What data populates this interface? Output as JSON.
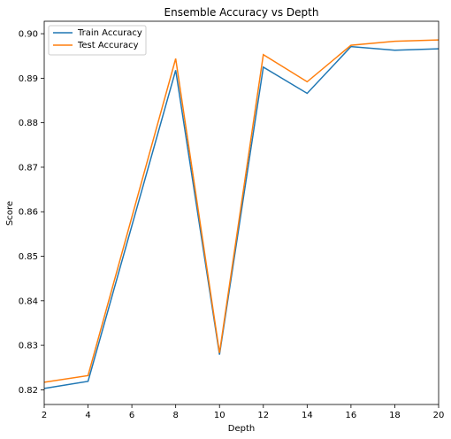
{
  "chart_data": {
    "type": "line",
    "title": "Ensemble Accuracy vs Depth",
    "xlabel": "Depth",
    "ylabel": "Score",
    "x": [
      2,
      4,
      8,
      10,
      12,
      14,
      16,
      18,
      20
    ],
    "xlim": [
      2,
      20
    ],
    "ylim": [
      0.8167,
      0.9028
    ],
    "xticks": [
      2,
      4,
      6,
      8,
      10,
      12,
      14,
      16,
      18,
      20
    ],
    "yticks": [
      "0.82",
      "0.83",
      "0.84",
      "0.85",
      "0.86",
      "0.87",
      "0.88",
      "0.89",
      "0.90"
    ],
    "grid": false,
    "legend_position": "upper-left",
    "series": [
      {
        "name": "Train Accuracy",
        "color": "#1f77b4",
        "values": [
          0.8203,
          0.8219,
          0.8918,
          0.8279,
          0.8925,
          0.8866,
          0.8971,
          0.8963,
          0.8966
        ]
      },
      {
        "name": "Test Accuracy",
        "color": "#ff7f0e",
        "values": [
          0.8217,
          0.8232,
          0.8944,
          0.8283,
          0.8953,
          0.8892,
          0.8974,
          0.8983,
          0.8986
        ]
      }
    ]
  }
}
